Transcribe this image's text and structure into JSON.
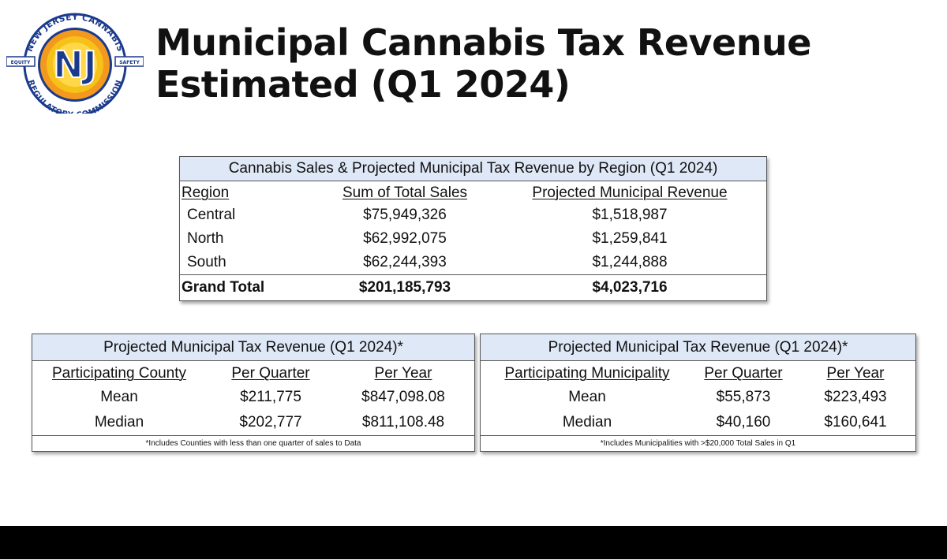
{
  "header": {
    "title_line1": "Municipal Cannabis Tax Revenue",
    "title_line2": "Estimated (Q1 2024)"
  },
  "logo": {
    "text_top": "NEW JERSEY CANNABIS",
    "text_bottom": "REGULATORY COMMISSION",
    "left_tag": "EQUITY",
    "right_tag": "SAFETY",
    "colors": {
      "navy": "#1b3a8c",
      "gold": "#f6c21a",
      "orange": "#f39a1e"
    }
  },
  "region_table": {
    "title": "Cannabis Sales & Projected Municipal Tax Revenue by Region (Q1 2024)",
    "columns": [
      "Region",
      "Sum of Total Sales",
      "Projected Municipal Revenue"
    ],
    "rows": [
      {
        "region": "Central",
        "sales": "$75,949,326",
        "revenue": "$1,518,987"
      },
      {
        "region": "North",
        "sales": "$62,992,075",
        "revenue": "$1,259,841"
      },
      {
        "region": "South",
        "sales": "$62,244,393",
        "revenue": "$1,244,888"
      }
    ],
    "total": {
      "label": "Grand Total",
      "sales": "$201,185,793",
      "revenue": "$4,023,716"
    }
  },
  "county_table": {
    "title": "Projected Municipal Tax Revenue  (Q1 2024)*",
    "columns": [
      "Participating County",
      "Per Quarter",
      "Per Year"
    ],
    "rows": [
      {
        "label": "Mean",
        "quarter": "$211,775",
        "year": "$847,098.08"
      },
      {
        "label": "Median",
        "quarter": "$202,777",
        "year": "$811,108.48"
      }
    ],
    "note": "*Includes Counties with less than one quarter of sales to Data"
  },
  "municipality_table": {
    "title": "Projected Municipal Tax Revenue  (Q1 2024)*",
    "columns": [
      "Participating Municipality",
      "Per Quarter",
      "Per Year"
    ],
    "rows": [
      {
        "label": "Mean",
        "quarter": "$55,873",
        "year": "$223,493"
      },
      {
        "label": "Median",
        "quarter": "$40,160",
        "year": "$160,641"
      }
    ],
    "note": "*Includes Municipalities with >$20,000 Total Sales in Q1"
  },
  "colors": {
    "table_header_bg": "#dfe8f6",
    "bottom_bar": "#000000"
  }
}
